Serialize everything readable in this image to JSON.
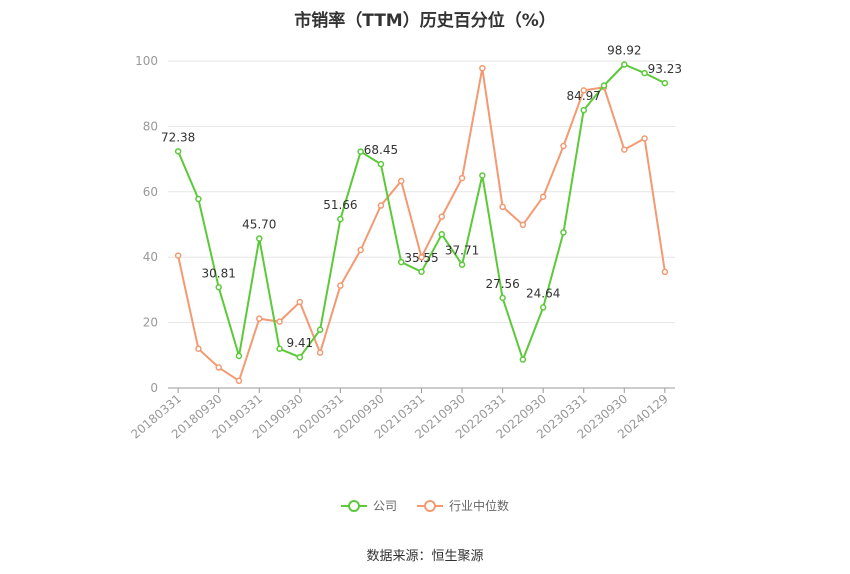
{
  "chart_data": {
    "type": "line",
    "title": "市销率（TTM）历史百分位（%）",
    "ylim": [
      0,
      100
    ],
    "yticks": [
      0,
      20,
      40,
      60,
      80,
      100
    ],
    "grid": true,
    "legend_position": "bottom",
    "tick_labels": [
      "20180331",
      "20180930",
      "20190331",
      "20190930",
      "20200331",
      "20200930",
      "20210331",
      "20210930",
      "20220331",
      "20220930",
      "20230331",
      "20230930",
      "20240129"
    ],
    "tick_indices": [
      0,
      2,
      4,
      6,
      8,
      10,
      12,
      14,
      16,
      18,
      20,
      22,
      24
    ],
    "x": [
      "20180331",
      "20180630",
      "20180930",
      "20181231",
      "20190331",
      "20190630",
      "20190930",
      "20191231",
      "20200331",
      "20200630",
      "20200930",
      "20201231",
      "20210331",
      "20210630",
      "20210930",
      "20211231",
      "20220331",
      "20220630",
      "20220930",
      "20221231",
      "20230331",
      "20230630",
      "20230930",
      "20231231",
      "20240129"
    ],
    "series": [
      {
        "name": "公司",
        "color": "#5cc93a",
        "values": [
          72.38,
          57.8,
          30.81,
          9.8,
          45.7,
          12.0,
          9.41,
          17.8,
          51.66,
          72.3,
          68.45,
          38.5,
          35.55,
          47.0,
          37.71,
          65.0,
          27.56,
          8.7,
          24.64,
          47.6,
          84.97,
          92.5,
          98.92,
          96.3,
          93.23
        ],
        "labels": [
          "72.38",
          "",
          "30.81",
          "",
          "45.70",
          "",
          "9.41",
          "",
          "51.66",
          "",
          "68.45",
          "",
          "35.55",
          "",
          "37.71",
          "",
          "27.56",
          "",
          "24.64",
          "",
          "84.97",
          "",
          "98.92",
          "",
          "93.23"
        ]
      },
      {
        "name": "行业中位数",
        "color": "#f39a72",
        "values": [
          40.5,
          12.0,
          6.3,
          2.2,
          21.2,
          20.3,
          26.3,
          10.8,
          31.3,
          42.2,
          55.8,
          63.3,
          40.0,
          52.4,
          64.2,
          97.8,
          55.4,
          49.9,
          58.5,
          74.0,
          91.0,
          92.0,
          72.9,
          76.3,
          35.5
        ]
      }
    ]
  },
  "source_text": "数据来源：恒生聚源"
}
